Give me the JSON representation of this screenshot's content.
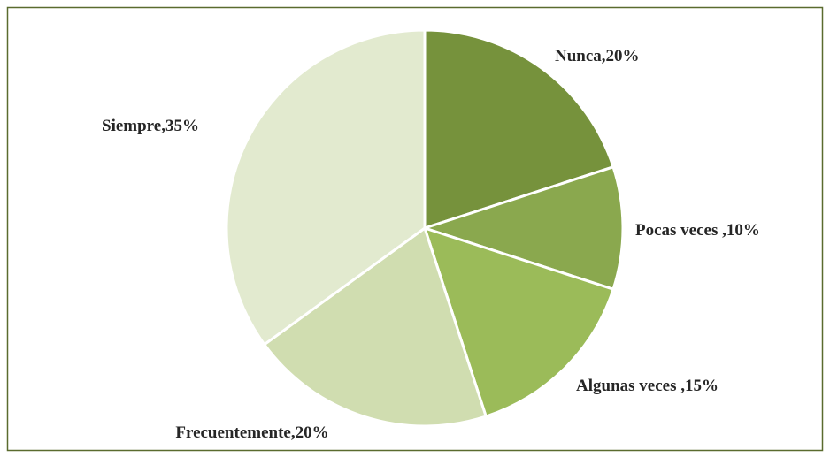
{
  "chart_data": {
    "type": "pie",
    "categories": [
      "Nunca",
      "Pocas veces ",
      "Algunas veces ",
      "Frecuentemente",
      "Siempre"
    ],
    "values": [
      20,
      10,
      15,
      20,
      35
    ],
    "value_labels": [
      "Nunca,20%",
      "Pocas veces ,10%",
      "Algunas veces ,15%",
      "Frecuentemente,20%",
      "Siempre,35%"
    ],
    "colors": [
      "#76923c",
      "#8aa84e",
      "#9bbb59",
      "#d0ddb0",
      "#e2eacf"
    ]
  }
}
